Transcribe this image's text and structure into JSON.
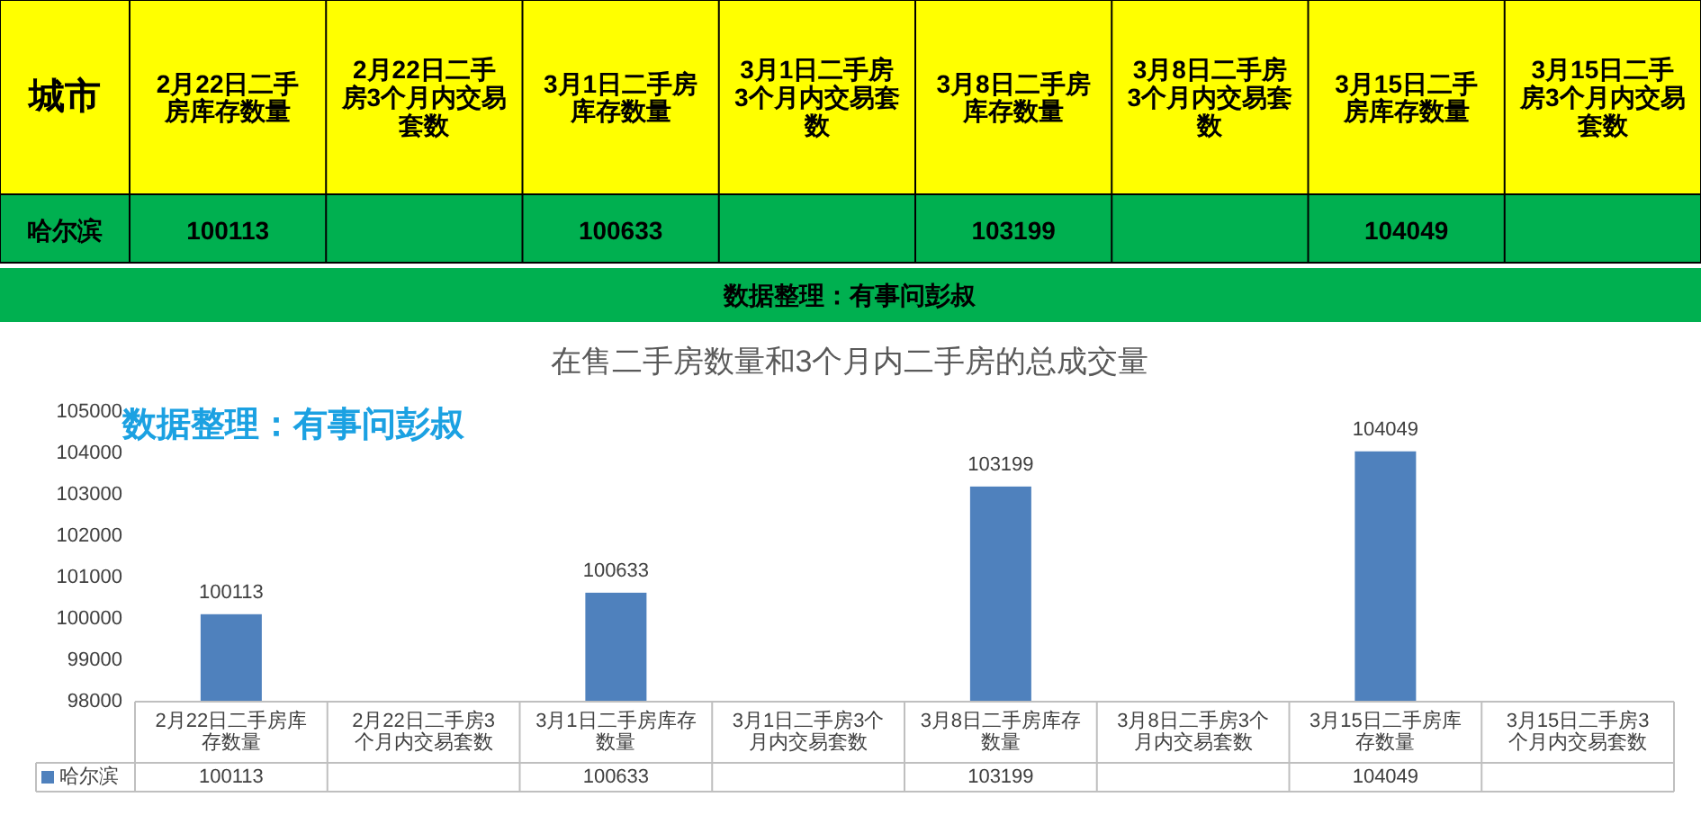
{
  "chart_data": [
    {
      "type": "other",
      "ylabel": "城市",
      "y_categories": [
        "哈尔滨"
      ],
      "categories": [
        "2月22日二手房库存数量",
        "2月22日二手房3个月内交易套数",
        "3月1日二手房库存数量",
        "3月1日二手房3个月内交易套数",
        "3月8日二手房库存数量",
        "3月8日二手房3个月内交易套数",
        "3月15日二手房库存数量",
        "3月15日二手房3个月内交易套数"
      ],
      "values": [
        100113,
        null,
        100633,
        null,
        103199,
        null,
        104049,
        null
      ],
      "data_labels": true,
      "annotations": [
        "数据整理：有事问彭叔"
      ]
    },
    {
      "type": "bar",
      "title": "在售二手房数量和3个月内二手房的总成交量",
      "categories": [
        "2月22日二手房库存数量",
        "2月22日二手房3个月内交易套数",
        "3月1日二手房库存数量",
        "3月1日二手房3个月内交易套数",
        "3月8日二手房库存数量",
        "3月8日二手房3个月内交易套数",
        "3月15日二手房库存数量",
        "3月15日二手房3个月内交易套数"
      ],
      "series": [
        {
          "name": "哈尔滨",
          "color": "#4f81bd",
          "values": [
            100113,
            null,
            100633,
            null,
            103199,
            null,
            104049,
            null
          ],
          "value_labels": [
            "100113",
            null,
            "100633",
            null,
            "103199",
            null,
            "104049",
            null
          ]
        }
      ],
      "ylim": [
        98000,
        105000
      ],
      "yticks": [
        98000,
        99000,
        100000,
        101000,
        102000,
        103000,
        104000,
        105000
      ],
      "data_labels": true,
      "legend": "bottom",
      "annotations": [
        "数据整理：有事问彭叔"
      ]
    }
  ]
}
